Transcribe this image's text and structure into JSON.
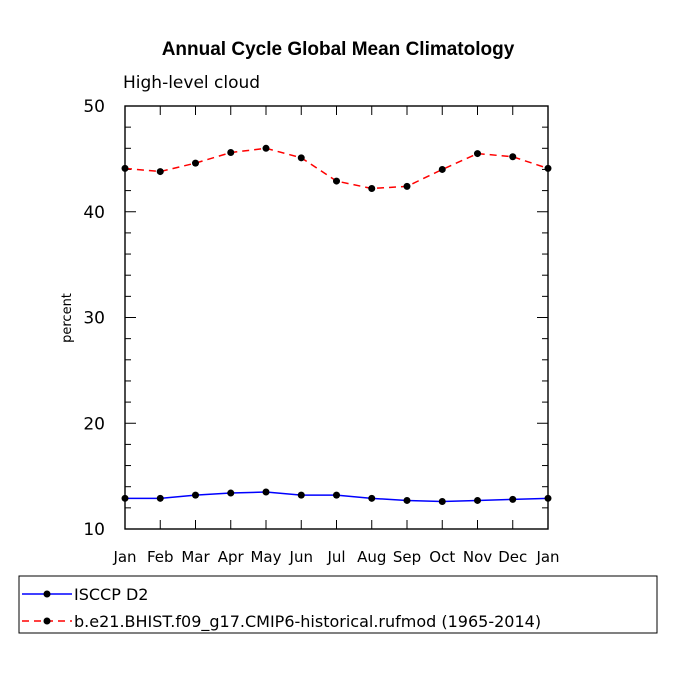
{
  "chart_data": {
    "type": "line",
    "title": "Annual Cycle Global Mean Climatology",
    "subtitle": "High-level cloud",
    "xlabel": "",
    "ylabel": "percent",
    "ylim": [
      10,
      50
    ],
    "yticks": [
      10,
      20,
      30,
      40,
      50
    ],
    "categories": [
      "Jan",
      "Feb",
      "Mar",
      "Apr",
      "May",
      "Jun",
      "Jul",
      "Aug",
      "Sep",
      "Oct",
      "Nov",
      "Dec",
      "Jan"
    ],
    "series": [
      {
        "name": "ISCCP D2",
        "color": "#0000ff",
        "dash": "solid",
        "values": [
          12.9,
          12.9,
          13.2,
          13.4,
          13.5,
          13.2,
          13.2,
          12.9,
          12.7,
          12.6,
          12.7,
          12.8,
          12.9
        ]
      },
      {
        "name": "b.e21.BHIST.f09_g17.CMIP6-historical.rufmod (1965-2014)",
        "color": "#ff0000",
        "dash": "dashed",
        "values": [
          44.1,
          43.8,
          44.6,
          45.6,
          46.0,
          45.1,
          42.9,
          42.2,
          42.4,
          44.0,
          45.5,
          45.2,
          44.1
        ]
      }
    ]
  }
}
